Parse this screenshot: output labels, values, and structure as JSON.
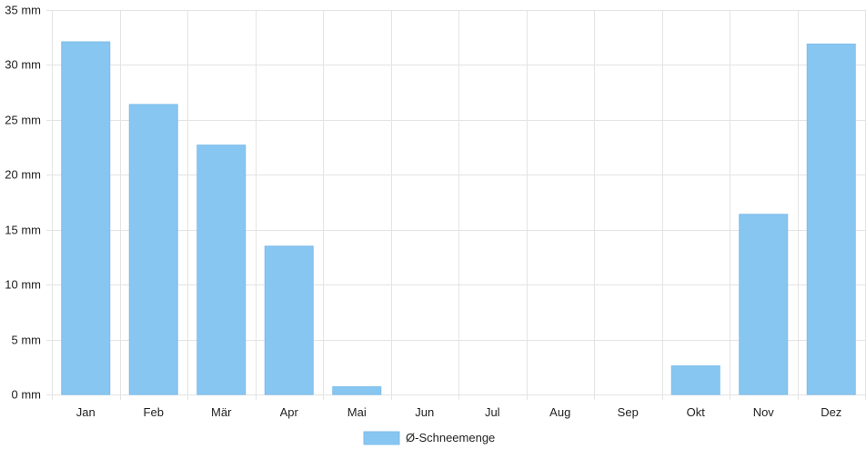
{
  "colors": {
    "bar": "#88c6f2",
    "bar_border": "#7dbde9",
    "grid": "#e4e4e4",
    "text": "#222222"
  },
  "chart_data": {
    "type": "bar",
    "categories": [
      "Jan",
      "Feb",
      "Mär",
      "Apr",
      "Mai",
      "Jun",
      "Jul",
      "Aug",
      "Sep",
      "Okt",
      "Nov",
      "Dez"
    ],
    "series": [
      {
        "name": "Ø-Schneemenge",
        "values": [
          32.1,
          26.4,
          22.7,
          13.5,
          0.7,
          0,
          0,
          0,
          0,
          2.6,
          16.4,
          31.9
        ]
      }
    ],
    "ylim": [
      0,
      35
    ],
    "y_ticks": [
      0,
      5,
      10,
      15,
      20,
      25,
      30,
      35
    ],
    "y_unit": "mm",
    "grid": true,
    "legend": "bottom"
  }
}
